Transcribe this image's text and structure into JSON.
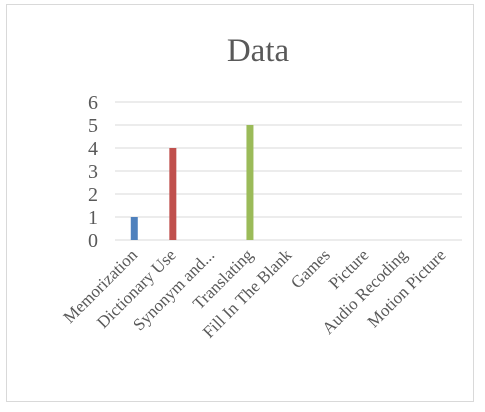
{
  "chart_data": {
    "type": "bar",
    "title": "Data",
    "categories": [
      "Memorization",
      "Dictionary Use",
      "Synonym and...",
      "Translating",
      "Fill In The Blank",
      "Games",
      "Picture",
      "Audio Recoding",
      "Motion Picture"
    ],
    "values": [
      1,
      4,
      0,
      5,
      0,
      0,
      0,
      0,
      0
    ],
    "colors": [
      "#4f81bd",
      "#c0504d",
      "#9bbb59",
      "#9bbb59",
      "#9bbb59",
      "#9bbb59",
      "#9bbb59",
      "#9bbb59",
      "#9bbb59"
    ],
    "yticks": [
      0,
      1,
      2,
      3,
      4,
      5,
      6
    ],
    "ylim": [
      0,
      6
    ],
    "grid": true,
    "legend": "none",
    "xlabel": "",
    "ylabel": ""
  }
}
